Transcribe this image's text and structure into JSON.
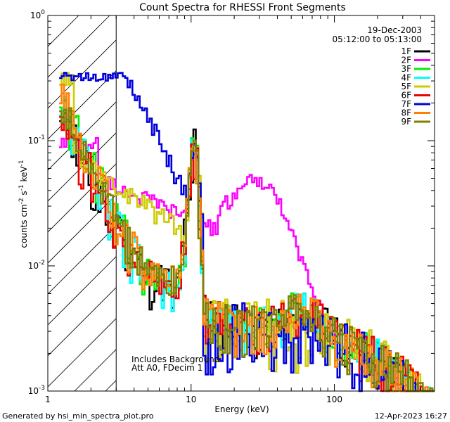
{
  "chart_data": {
    "type": "line",
    "title": "Count Spectra for RHESSI Front Segments",
    "xlabel": "Energy (keV)",
    "ylabel": {
      "base": "counts cm",
      "exp1": "-2",
      "mid1": " s",
      "exp2": "-1",
      "mid2": " keV",
      "exp3": "-1"
    },
    "xscale": "log",
    "yscale": "log",
    "xlim": [
      1,
      500
    ],
    "ylim": [
      0.001,
      1
    ],
    "x_ticks": [
      {
        "value": 1,
        "label": "1"
      },
      {
        "value": 10,
        "label": "10"
      },
      {
        "value": 100,
        "label": "100"
      }
    ],
    "y_ticks": [
      {
        "value": 0.001,
        "base": "10",
        "exp": "-3"
      },
      {
        "value": 0.01,
        "base": "10",
        "exp": "-2"
      },
      {
        "value": 0.1,
        "base": "10",
        "exp": "-1"
      },
      {
        "value": 1,
        "base": "10",
        "exp": "0"
      }
    ],
    "date": "19-Dec-2003",
    "time_range": "05:12:00 to 05:13:00",
    "annotation_lines": [
      "Includes Background",
      "Att A0, FDecim 1"
    ],
    "shaded_region": {
      "from": 1,
      "to": 3,
      "style": "hatched"
    },
    "series": [
      {
        "name": "1F",
        "color": "#000000"
      },
      {
        "name": "2F",
        "color": "#ff00ff"
      },
      {
        "name": "3F",
        "color": "#00ee00"
      },
      {
        "name": "4F",
        "color": "#00ffff"
      },
      {
        "name": "5F",
        "color": "#cccc00"
      },
      {
        "name": "6F",
        "color": "#ee0000"
      },
      {
        "name": "7F",
        "color": "#0000dd"
      },
      {
        "name": "8F",
        "color": "#ff8000"
      },
      {
        "name": "9F",
        "color": "#808000"
      }
    ],
    "footer_left": "Generated by hsi_min_spectra_plot.pro",
    "footer_right": "12-Apr-2023 16:27"
  }
}
